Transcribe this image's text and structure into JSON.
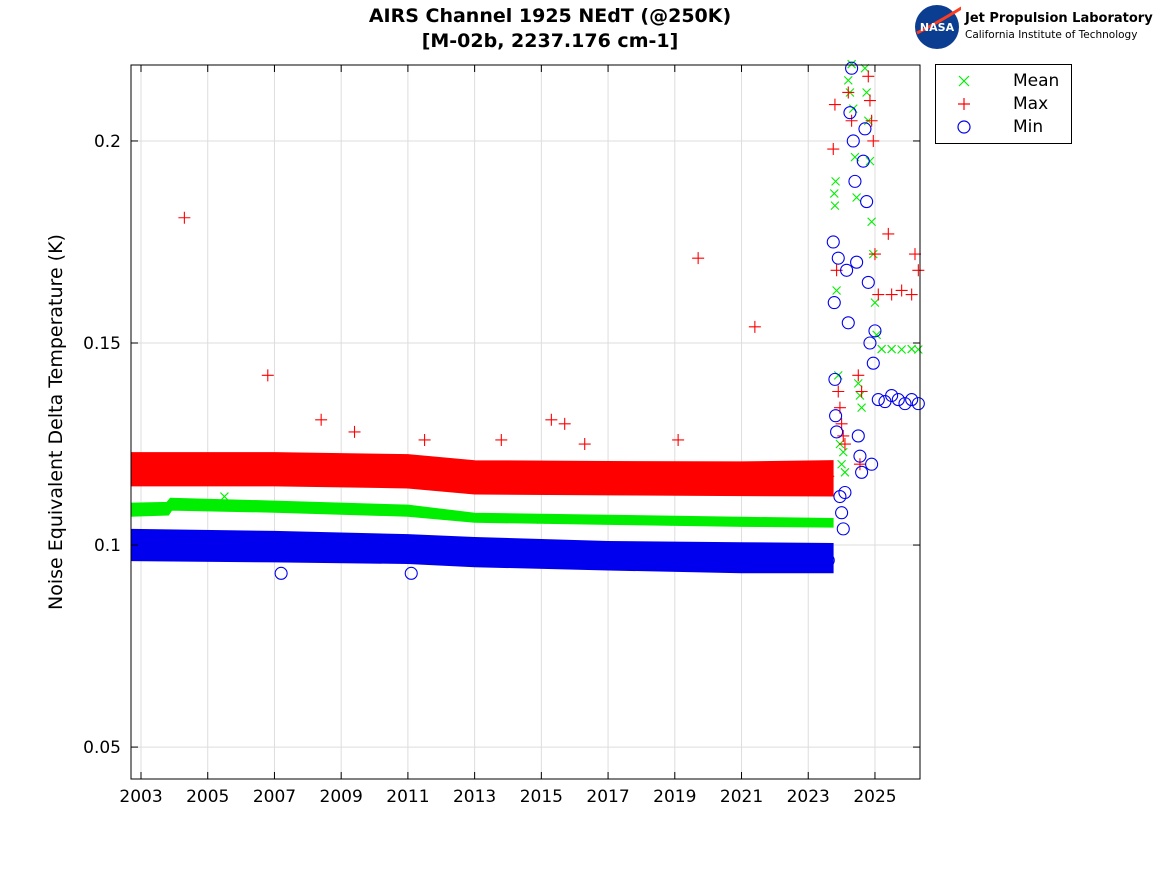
{
  "logo": {
    "agency": "NASA",
    "line1": "Jet Propulsion Laboratory",
    "line2": "California Institute of Technology"
  },
  "chart_data": {
    "type": "scatter",
    "title": [
      "AIRS Channel 1925 NEdT (@250K)",
      "[M-02b, 2237.176 cm-1]"
    ],
    "xlabel": "",
    "ylabel": "Noise Equivalent Delta Temperature (K)",
    "xlim": [
      2002.7,
      2026.35
    ],
    "ylim": [
      0.0421,
      0.2188
    ],
    "xticks": [
      2003,
      2005,
      2007,
      2009,
      2011,
      2013,
      2015,
      2017,
      2019,
      2021,
      2023,
      2025
    ],
    "yticks": [
      0.05,
      0.1,
      0.15,
      0.2
    ],
    "ytick_labels": [
      "0.05",
      "0.1",
      "0.15",
      "0.2"
    ],
    "grid": true,
    "legend_position": "outside-top-right",
    "series": [
      {
        "name": "Mean",
        "marker": "x",
        "color": "#00ee00",
        "envelope": [
          [
            2002.75,
            0.1075,
            0.11
          ],
          [
            2003.8,
            0.1078,
            0.1102
          ],
          [
            2003.9,
            0.109,
            0.1112
          ],
          [
            2007,
            0.1085,
            0.1105
          ],
          [
            2011,
            0.1075,
            0.1095
          ],
          [
            2013,
            0.106,
            0.1075
          ],
          [
            2017,
            0.1055,
            0.107
          ],
          [
            2021,
            0.105,
            0.1065
          ],
          [
            2023.7,
            0.1048,
            0.1062
          ]
        ],
        "points": [
          [
            2002.9,
            0.1085
          ],
          [
            2003.5,
            0.1088
          ],
          [
            2004,
            0.11
          ],
          [
            2005,
            0.11
          ],
          [
            2005.5,
            0.112
          ],
          [
            2006,
            0.1098
          ],
          [
            2007,
            0.1095
          ],
          [
            2008,
            0.1092
          ],
          [
            2009,
            0.1088
          ],
          [
            2010,
            0.1085
          ],
          [
            2011,
            0.1082
          ],
          [
            2012,
            0.1078
          ],
          [
            2013,
            0.1068
          ],
          [
            2014,
            0.1065
          ],
          [
            2015,
            0.1063
          ],
          [
            2016,
            0.1062
          ],
          [
            2017,
            0.1062
          ],
          [
            2018,
            0.106
          ],
          [
            2019,
            0.1058
          ],
          [
            2020,
            0.1058
          ],
          [
            2021,
            0.1057
          ],
          [
            2022,
            0.1056
          ],
          [
            2023,
            0.1055
          ],
          [
            2023.6,
            0.1055
          ],
          [
            2023.78,
            0.187
          ],
          [
            2023.8,
            0.184
          ],
          [
            2023.82,
            0.19
          ],
          [
            2023.85,
            0.163
          ],
          [
            2023.9,
            0.142
          ],
          [
            2023.95,
            0.125
          ],
          [
            2024,
            0.12
          ],
          [
            2024.05,
            0.123
          ],
          [
            2024.1,
            0.118
          ],
          [
            2024.2,
            0.215
          ],
          [
            2024.25,
            0.212
          ],
          [
            2024.3,
            0.219
          ],
          [
            2024.35,
            0.208
          ],
          [
            2024.4,
            0.196
          ],
          [
            2024.45,
            0.186
          ],
          [
            2024.5,
            0.14
          ],
          [
            2024.55,
            0.137
          ],
          [
            2024.6,
            0.134
          ],
          [
            2024.7,
            0.218
          ],
          [
            2024.75,
            0.212
          ],
          [
            2024.8,
            0.205
          ],
          [
            2024.85,
            0.195
          ],
          [
            2024.9,
            0.18
          ],
          [
            2024.95,
            0.172
          ],
          [
            2025,
            0.16
          ],
          [
            2025.05,
            0.152
          ],
          [
            2025.2,
            0.1485
          ],
          [
            2025.5,
            0.1485
          ],
          [
            2025.8,
            0.1484
          ],
          [
            2026.1,
            0.1485
          ],
          [
            2026.3,
            0.1484
          ]
        ]
      },
      {
        "name": "Max",
        "marker": "+",
        "color": "#ff0000",
        "envelope": [
          [
            2002.75,
            0.115,
            0.1225
          ],
          [
            2007,
            0.115,
            0.1225
          ],
          [
            2011,
            0.1145,
            0.122
          ],
          [
            2013,
            0.113,
            0.1205
          ],
          [
            2017,
            0.1128,
            0.1203
          ],
          [
            2021,
            0.1126,
            0.1202
          ],
          [
            2023.7,
            0.1125,
            0.1205
          ]
        ],
        "points": [
          [
            2002.9,
            0.119
          ],
          [
            2003.5,
            0.119
          ],
          [
            2004,
            0.12
          ],
          [
            2004.3,
            0.181
          ],
          [
            2005,
            0.12
          ],
          [
            2006,
            0.119
          ],
          [
            2006.8,
            0.142
          ],
          [
            2007,
            0.119
          ],
          [
            2008,
            0.119
          ],
          [
            2008.4,
            0.131
          ],
          [
            2009,
            0.119
          ],
          [
            2009.4,
            0.128
          ],
          [
            2010,
            0.118
          ],
          [
            2011,
            0.118
          ],
          [
            2011.5,
            0.126
          ],
          [
            2012,
            0.118
          ],
          [
            2013,
            0.117
          ],
          [
            2013.8,
            0.126
          ],
          [
            2014,
            0.117
          ],
          [
            2015,
            0.117
          ],
          [
            2015.3,
            0.131
          ],
          [
            2015.7,
            0.13
          ],
          [
            2016,
            0.117
          ],
          [
            2016.3,
            0.125
          ],
          [
            2017,
            0.117
          ],
          [
            2018,
            0.117
          ],
          [
            2019,
            0.117
          ],
          [
            2019.1,
            0.126
          ],
          [
            2019.7,
            0.171
          ],
          [
            2020,
            0.117
          ],
          [
            2021,
            0.117
          ],
          [
            2021.4,
            0.154
          ],
          [
            2022,
            0.116
          ],
          [
            2023,
            0.116
          ],
          [
            2023.6,
            0.117
          ],
          [
            2023.75,
            0.198
          ],
          [
            2023.8,
            0.209
          ],
          [
            2023.85,
            0.168
          ],
          [
            2023.9,
            0.138
          ],
          [
            2023.95,
            0.134
          ],
          [
            2024,
            0.13
          ],
          [
            2024.05,
            0.127
          ],
          [
            2024.1,
            0.125
          ],
          [
            2024.2,
            0.212
          ],
          [
            2024.3,
            0.205
          ],
          [
            2024.5,
            0.142
          ],
          [
            2024.55,
            0.12
          ],
          [
            2024.6,
            0.138
          ],
          [
            2024.8,
            0.216
          ],
          [
            2024.85,
            0.21
          ],
          [
            2024.9,
            0.205
          ],
          [
            2024.95,
            0.2
          ],
          [
            2025,
            0.172
          ],
          [
            2025.1,
            0.162
          ],
          [
            2025.4,
            0.177
          ],
          [
            2025.5,
            0.162
          ],
          [
            2025.8,
            0.163
          ],
          [
            2026.1,
            0.162
          ],
          [
            2026.2,
            0.172
          ],
          [
            2026.3,
            0.168
          ]
        ]
      },
      {
        "name": "Min",
        "marker": "o",
        "color": "#0000ee",
        "envelope": [
          [
            2002.75,
            0.0965,
            0.1035
          ],
          [
            2007,
            0.0962,
            0.103
          ],
          [
            2011,
            0.0958,
            0.1022
          ],
          [
            2013,
            0.095,
            0.1015
          ],
          [
            2017,
            0.0942,
            0.1005
          ],
          [
            2021,
            0.0935,
            0.1002
          ],
          [
            2023.7,
            0.0935,
            0.1
          ]
        ],
        "points": [
          [
            2002.9,
            0.0995
          ],
          [
            2003.5,
            0.0998
          ],
          [
            2004,
            0.0998
          ],
          [
            2005,
            0.0999
          ],
          [
            2006,
            0.0997
          ],
          [
            2007,
            0.0995
          ],
          [
            2007.2,
            0.093
          ],
          [
            2008,
            0.0994
          ],
          [
            2009,
            0.0993
          ],
          [
            2010,
            0.099
          ],
          [
            2011,
            0.0988
          ],
          [
            2011.1,
            0.093
          ],
          [
            2012,
            0.0985
          ],
          [
            2013,
            0.0978
          ],
          [
            2014,
            0.0975
          ],
          [
            2015,
            0.0972
          ],
          [
            2016,
            0.097
          ],
          [
            2017,
            0.097
          ],
          [
            2018,
            0.0968
          ],
          [
            2019,
            0.0965
          ],
          [
            2020,
            0.0965
          ],
          [
            2021,
            0.0963
          ],
          [
            2022,
            0.0962
          ],
          [
            2023,
            0.0962
          ],
          [
            2023.6,
            0.0962
          ],
          [
            2023.75,
            0.175
          ],
          [
            2023.78,
            0.16
          ],
          [
            2023.8,
            0.141
          ],
          [
            2023.82,
            0.132
          ],
          [
            2023.85,
            0.128
          ],
          [
            2023.9,
            0.171
          ],
          [
            2023.95,
            0.112
          ],
          [
            2024,
            0.108
          ],
          [
            2024.05,
            0.104
          ],
          [
            2024.1,
            0.113
          ],
          [
            2024.15,
            0.168
          ],
          [
            2024.2,
            0.155
          ],
          [
            2024.25,
            0.207
          ],
          [
            2024.3,
            0.218
          ],
          [
            2024.35,
            0.2
          ],
          [
            2024.4,
            0.19
          ],
          [
            2024.45,
            0.17
          ],
          [
            2024.5,
            0.127
          ],
          [
            2024.55,
            0.122
          ],
          [
            2024.6,
            0.118
          ],
          [
            2024.65,
            0.195
          ],
          [
            2024.7,
            0.203
          ],
          [
            2024.75,
            0.185
          ],
          [
            2024.8,
            0.165
          ],
          [
            2024.85,
            0.15
          ],
          [
            2024.9,
            0.12
          ],
          [
            2024.95,
            0.145
          ],
          [
            2025,
            0.153
          ],
          [
            2025.1,
            0.136
          ],
          [
            2025.3,
            0.1355
          ],
          [
            2025.5,
            0.137
          ],
          [
            2025.7,
            0.136
          ],
          [
            2025.9,
            0.135
          ],
          [
            2026.1,
            0.136
          ],
          [
            2026.3,
            0.135
          ]
        ]
      }
    ]
  }
}
